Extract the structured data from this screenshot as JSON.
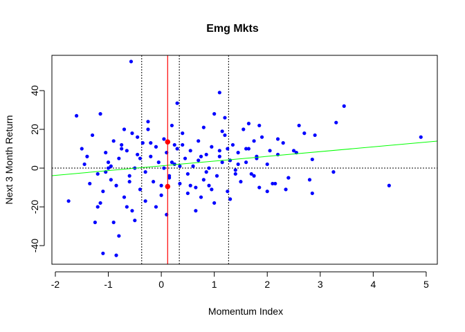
{
  "chart_data": {
    "type": "scatter",
    "title": "Emg Mkts",
    "x_label": "Momentum Index",
    "y_label": "Next 3 Month Return",
    "color": "#0000ff",
    "xlim": [
      -2.065,
      5.21
    ],
    "ylim": [
      -49.6,
      58.2
    ],
    "xticks": [
      -2,
      -1,
      0,
      1,
      2,
      3,
      4,
      5
    ],
    "yticks": [
      -40,
      -20,
      0,
      20,
      40
    ],
    "x": [
      -0.57,
      1.1,
      3.45,
      3.3,
      4.9,
      4.3,
      -1.75,
      -1.6,
      -1.1,
      -0.85,
      -0.8,
      0.3,
      2.85,
      3.25,
      2.9,
      2.85,
      2.6,
      -1.25,
      -0.5,
      0.1,
      0.65,
      1.0,
      1.3,
      -0.1,
      -0.65,
      -1.5,
      -1.45,
      -1.4,
      -1.3,
      -1.2,
      -1.15,
      -1.1,
      -1.05,
      -1.0,
      -0.95,
      -0.9,
      -0.85,
      -0.8,
      -0.75,
      -0.7,
      -0.65,
      -0.6,
      -0.55,
      -0.5,
      -0.45,
      -0.4,
      -0.35,
      -0.3,
      -0.25,
      -0.2,
      -0.15,
      -0.1,
      -0.05,
      0.0,
      0.05,
      0.1,
      0.15,
      0.2,
      0.25,
      0.3,
      0.35,
      0.4,
      0.45,
      0.5,
      0.55,
      0.6,
      0.65,
      0.7,
      0.75,
      0.8,
      0.85,
      0.9,
      0.95,
      1.0,
      1.05,
      1.1,
      1.15,
      1.2,
      1.25,
      1.3,
      1.35,
      1.4,
      1.45,
      1.5,
      1.55,
      1.6,
      1.65,
      1.7,
      1.75,
      1.8,
      1.85,
      1.9,
      2.0,
      2.1,
      2.2,
      2.3,
      2.4,
      2.5,
      2.7,
      2.8,
      -1.35,
      -1.2,
      -1.0,
      -0.9,
      -0.7,
      -0.6,
      -0.4,
      -0.3,
      -0.2,
      0.0,
      0.2,
      0.4,
      0.5,
      0.7,
      0.8,
      0.9,
      1.1,
      1.2,
      1.4,
      1.6,
      1.8,
      2.0,
      2.2,
      2.4,
      -1.15,
      -0.95,
      -0.55,
      -0.25,
      0.05,
      0.25,
      0.55,
      0.85,
      1.15,
      1.45,
      1.75,
      2.05,
      2.35,
      -1.05,
      -0.45,
      0.35,
      0.75,
      1.25,
      1.65,
      2.15,
      2.55,
      -0.75,
      0.15,
      0.95,
      1.85
    ],
    "y": [
      55,
      39,
      32,
      23.5,
      16,
      -9,
      -17,
      27,
      -44,
      -45,
      -35,
      33.5,
      -13,
      -2,
      17,
      4.5,
      22,
      -28,
      -27,
      -24,
      -22,
      -18,
      -16,
      -20,
      -20,
      10,
      2,
      6,
      17,
      -3,
      28,
      -12,
      8,
      3,
      -6,
      14,
      -9,
      5,
      12,
      -15,
      9,
      -4,
      18,
      0,
      7,
      -11,
      13,
      -2,
      20,
      6,
      -7,
      11,
      3,
      -14,
      15,
      8,
      -5,
      22,
      2,
      10,
      -8,
      12,
      5,
      -3,
      9,
      1,
      -10,
      14,
      6,
      -6,
      7,
      0,
      11,
      28,
      -4,
      9,
      3,
      17,
      -12,
      4,
      12,
      -1,
      8,
      -7,
      20,
      3,
      10,
      -3,
      14,
      6,
      -10,
      16,
      2,
      -8,
      7,
      13,
      -5,
      9,
      18,
      -6,
      -8,
      -20,
      0,
      -28,
      20,
      -7,
      5,
      -17,
      13,
      -9,
      3,
      18,
      -13,
      4,
      21,
      -9,
      6,
      26,
      -3,
      10,
      5,
      -12,
      15,
      -5,
      -18,
      1,
      -22,
      24,
      0,
      12,
      -9,
      -2,
      19,
      2,
      -4,
      9,
      -11,
      -2,
      16,
      1,
      -15,
      10,
      23,
      -8,
      8,
      10,
      -4,
      -11,
      22
    ],
    "ref_lines": [
      -0.37,
      0.34,
      1.27
    ],
    "hline": 0,
    "marker_line": {
      "x": 0.12,
      "color": "#ff0000"
    },
    "highlight": {
      "x": [
        0.12,
        0.12
      ],
      "y": [
        13.5,
        -9.5
      ],
      "color": "#ff0000"
    },
    "fit": {
      "intercept": 1.16,
      "slope": 2.45,
      "color": "#00ff00"
    }
  }
}
